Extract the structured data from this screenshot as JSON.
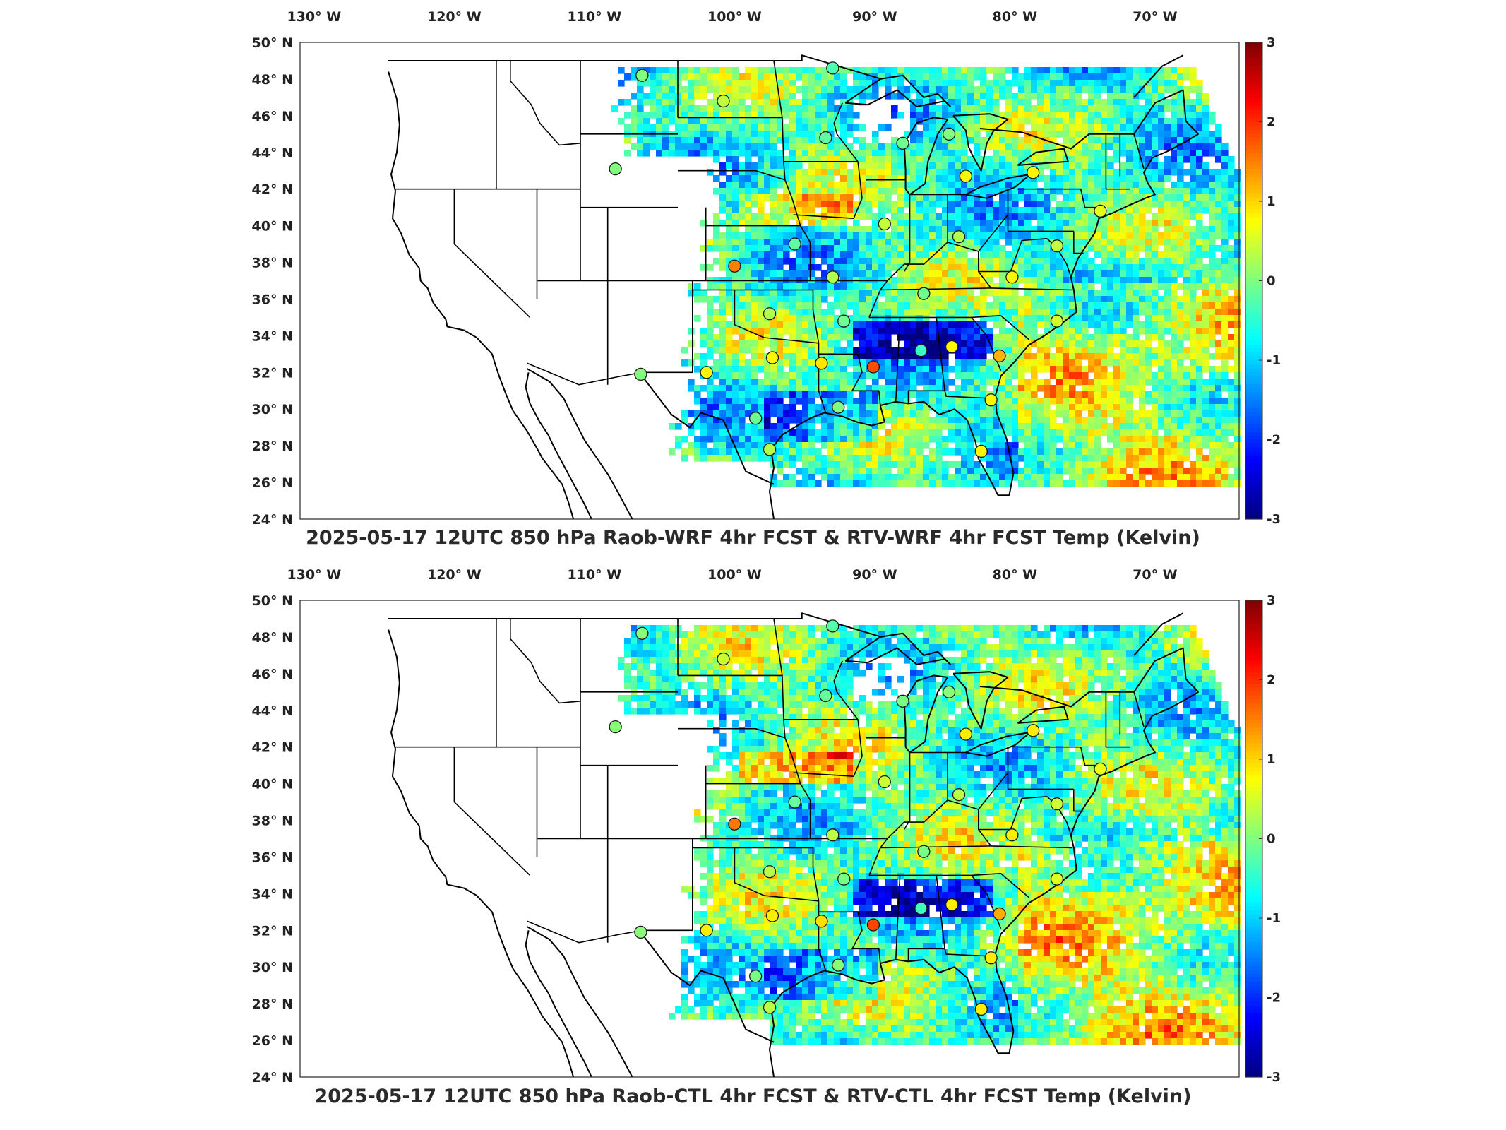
{
  "panels": [
    {
      "id": "top",
      "title": "2025-05-17 12UTC 850 hPa Raob-WRF 4hr FCST & RTV-WRF 4hr FCST Temp (Kelvin)",
      "variant": "wrf"
    },
    {
      "id": "bottom",
      "title": "2025-05-17 12UTC 850 hPa Raob-CTL 4hr FCST & RTV-CTL 4hr FCST Temp (Kelvin)",
      "variant": "ctl"
    }
  ],
  "axes": {
    "lon_ticks": [
      {
        "value": -130,
        "label": "130",
        "hemi": "W"
      },
      {
        "value": -120,
        "label": "120",
        "hemi": "W"
      },
      {
        "value": -110,
        "label": "110",
        "hemi": "W"
      },
      {
        "value": -100,
        "label": "100",
        "hemi": "W"
      },
      {
        "value": -90,
        "label": "90",
        "hemi": "W"
      },
      {
        "value": -80,
        "label": "80",
        "hemi": "W"
      },
      {
        "value": -70,
        "label": "70",
        "hemi": "W"
      }
    ],
    "lat_ticks": [
      {
        "value": 50,
        "label": "50",
        "hemi": "N"
      },
      {
        "value": 48,
        "label": "48",
        "hemi": "N"
      },
      {
        "value": 46,
        "label": "46",
        "hemi": "N"
      },
      {
        "value": 44,
        "label": "44",
        "hemi": "N"
      },
      {
        "value": 42,
        "label": "42",
        "hemi": "N"
      },
      {
        "value": 40,
        "label": "40",
        "hemi": "N"
      },
      {
        "value": 38,
        "label": "38",
        "hemi": "N"
      },
      {
        "value": 36,
        "label": "36",
        "hemi": "N"
      },
      {
        "value": 34,
        "label": "34",
        "hemi": "N"
      },
      {
        "value": 32,
        "label": "32",
        "hemi": "N"
      },
      {
        "value": 30,
        "label": "30",
        "hemi": "N"
      },
      {
        "value": 28,
        "label": "28",
        "hemi": "N"
      },
      {
        "value": 26,
        "label": "26",
        "hemi": "N"
      },
      {
        "value": 24,
        "label": "24",
        "hemi": "N"
      }
    ],
    "lon_range": [
      -131,
      -64
    ],
    "lat_range": [
      24,
      50
    ]
  },
  "colorbar": {
    "range": [
      -3,
      3
    ],
    "ticks": [
      "3",
      "2",
      "1",
      "0",
      "-1",
      "-2",
      "-3"
    ],
    "colormap": "jet"
  },
  "colors": {
    "coast": "#000000",
    "state_lines": "#000000"
  },
  "raob_stations": [
    {
      "lon": -106.6,
      "lat": 48.2,
      "value": 0.0
    },
    {
      "lon": -100.8,
      "lat": 46.8,
      "value": 0.4
    },
    {
      "lon": -93.0,
      "lat": 48.6,
      "value": -0.3
    },
    {
      "lon": -93.5,
      "lat": 44.8,
      "value": -0.2
    },
    {
      "lon": -88.0,
      "lat": 44.5,
      "value": -0.1
    },
    {
      "lon": -84.7,
      "lat": 45.0,
      "value": 0.0
    },
    {
      "lon": -108.5,
      "lat": 43.1,
      "value": 0.0
    },
    {
      "lon": -83.5,
      "lat": 42.7,
      "value": 0.8
    },
    {
      "lon": -78.7,
      "lat": 42.9,
      "value": 0.8
    },
    {
      "lon": -89.3,
      "lat": 40.1,
      "value": 0.4
    },
    {
      "lon": -84.0,
      "lat": 39.4,
      "value": 0.3
    },
    {
      "lon": -95.7,
      "lat": 39.0,
      "value": -0.2
    },
    {
      "lon": -100.0,
      "lat": 37.8,
      "value": 1.5
    },
    {
      "lon": -93.0,
      "lat": 37.2,
      "value": 0.3
    },
    {
      "lon": -86.5,
      "lat": 36.3,
      "value": -0.1
    },
    {
      "lon": -80.2,
      "lat": 37.2,
      "value": 0.8
    },
    {
      "lon": -97.5,
      "lat": 35.2,
      "value": 0.3
    },
    {
      "lon": -92.2,
      "lat": 34.8,
      "value": -0.1
    },
    {
      "lon": -77.0,
      "lat": 34.8,
      "value": 0.5
    },
    {
      "lon": -97.3,
      "lat": 32.8,
      "value": 0.8
    },
    {
      "lon": -93.8,
      "lat": 32.5,
      "value": 0.9
    },
    {
      "lon": -90.1,
      "lat": 32.3,
      "value": 1.8
    },
    {
      "lon": -86.7,
      "lat": 33.2,
      "value": -0.4
    },
    {
      "lon": -84.5,
      "lat": 33.4,
      "value": 0.8
    },
    {
      "lon": -81.1,
      "lat": 32.9,
      "value": 1.2
    },
    {
      "lon": -102.0,
      "lat": 32.0,
      "value": 0.8
    },
    {
      "lon": -106.7,
      "lat": 31.9,
      "value": 0.0
    },
    {
      "lon": -81.7,
      "lat": 30.5,
      "value": 0.8
    },
    {
      "lon": -92.6,
      "lat": 30.1,
      "value": 0.0
    },
    {
      "lon": -98.5,
      "lat": 29.5,
      "value": -0.1
    },
    {
      "lon": -97.5,
      "lat": 27.8,
      "value": 0.3
    },
    {
      "lon": -82.4,
      "lat": 27.7,
      "value": 0.8
    },
    {
      "lon": -77.0,
      "lat": 38.9,
      "value": 0.4
    },
    {
      "lon": -73.9,
      "lat": 40.8,
      "value": 0.6
    }
  ]
}
